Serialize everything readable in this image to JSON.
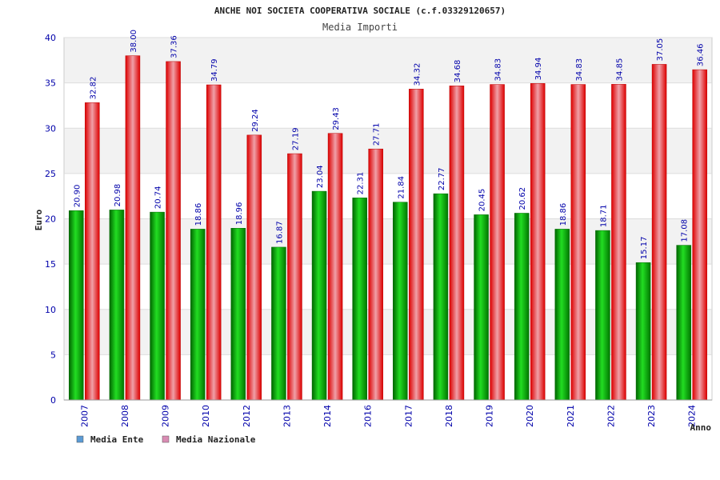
{
  "chart_data": {
    "type": "bar",
    "title": "ANCHE NOI SOCIETA COOPERATIVA SOCIALE (c.f.03329120657)",
    "subtitle": "Media Importi",
    "xlabel": "Anno",
    "ylabel": "Euro",
    "ylim": [
      0,
      40
    ],
    "yticks": [
      "0",
      "5",
      "10",
      "15",
      "20",
      "25",
      "30",
      "35",
      "40"
    ],
    "categories": [
      "2007",
      "2008",
      "2009",
      "2010",
      "2012",
      "2013",
      "2014",
      "2016",
      "2017",
      "2018",
      "2019",
      "2020",
      "2021",
      "2022",
      "2023",
      "2024"
    ],
    "series": [
      {
        "name": "Media Ente",
        "color": "#00aa00",
        "legend_color": "#5b9bd5",
        "values": [
          20.9,
          20.98,
          20.74,
          18.86,
          18.96,
          16.87,
          23.04,
          22.31,
          21.84,
          22.77,
          20.45,
          20.62,
          18.86,
          18.71,
          15.17,
          17.08
        ],
        "labels": [
          "20.90",
          "20.98",
          "20.74",
          "18.86",
          "18.96",
          "16.87",
          "23.04",
          "22.31",
          "21.84",
          "22.77",
          "20.45",
          "20.62",
          "18.86",
          "18.71",
          "15.17",
          "17.08"
        ]
      },
      {
        "name": "Media Nazionale",
        "color": "#ee0000",
        "legend_color": "#d98cb3",
        "values": [
          32.82,
          38.0,
          37.36,
          34.79,
          29.24,
          27.19,
          29.43,
          27.71,
          34.32,
          34.68,
          34.83,
          34.94,
          34.83,
          34.85,
          37.05,
          36.46
        ],
        "labels": [
          "32.82",
          "38.00",
          "37.36",
          "34.79",
          "29.24",
          "27.19",
          "29.43",
          "27.71",
          "34.32",
          "34.68",
          "34.83",
          "34.94",
          "34.83",
          "34.85",
          "37.05",
          "36.46"
        ]
      }
    ],
    "grid": true,
    "legend_position": "bottom-left"
  }
}
